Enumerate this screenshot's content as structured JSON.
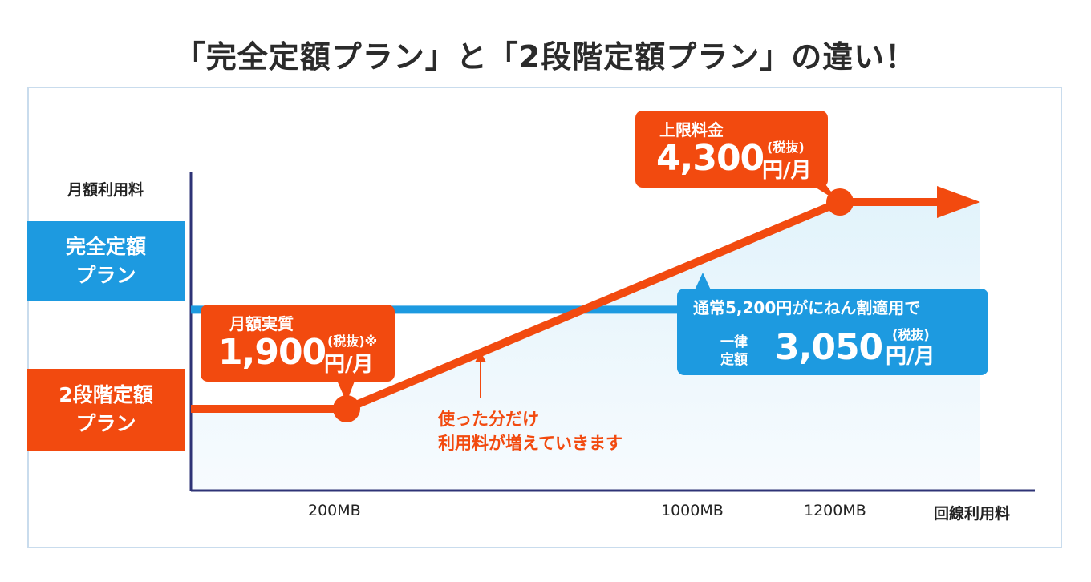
{
  "title": "「完全定額プラン」と「2段階定額プラン」の違い！",
  "chart_data": {
    "type": "line",
    "ylabel": "月額利用料",
    "xlabel": "回線利用料",
    "x_ticks": [
      "200MB",
      "1000MB",
      "1200MB"
    ],
    "series": [
      {
        "name": "完全定額プラン",
        "color": "#1d9ae0",
        "x": [
          0,
          1000,
          1400
        ],
        "y": [
          3050,
          3050,
          3050
        ]
      },
      {
        "name": "2段階定額プラン",
        "color": "#f24a0f",
        "x": [
          0,
          200,
          1200,
          1400
        ],
        "y": [
          1900,
          1900,
          4300,
          4300
        ]
      }
    ],
    "tags": {
      "flat_l1": "完全定額",
      "flat_l2": "プラン",
      "twostep_l1": "2段階定額",
      "twostep_l2": "プラン"
    },
    "callouts": {
      "cap": {
        "label": "上限料金",
        "value": "4,300",
        "unit": "円/月",
        "tax": "(税抜)"
      },
      "min": {
        "label": "月額実質",
        "value": "1,900",
        "unit": "円/月",
        "tax": "(税抜)※"
      },
      "flat": {
        "line1": "通常5,200円がにねん割適用で",
        "tag1": "一律",
        "tag2": "定額",
        "value": "3,050",
        "unit": "円/月",
        "tax": "(税抜)"
      }
    },
    "annotation": [
      "使った分だけ",
      "利用料が増えていきます"
    ]
  }
}
